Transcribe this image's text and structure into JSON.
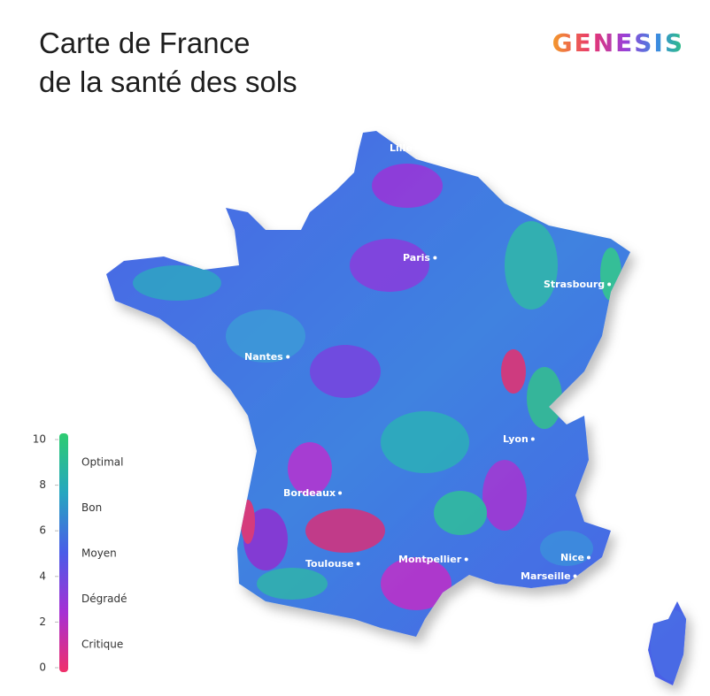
{
  "header": {
    "title_line1": "Carte de France",
    "title_line2": "de la santé des sols",
    "brand": "GENESIS"
  },
  "legend": {
    "lim": [
      0,
      10
    ],
    "ticks": [
      0,
      2,
      4,
      6,
      8,
      10
    ],
    "levels": [
      "Optimal",
      "Bon",
      "Moyen",
      "Dégradé",
      "Critique"
    ]
  },
  "cities": [
    "Lille",
    "Paris",
    "Strasbourg",
    "Nantes",
    "Lyon",
    "Bordeaux",
    "Toulouse",
    "Montpellier",
    "Nice",
    "Marseille"
  ]
}
